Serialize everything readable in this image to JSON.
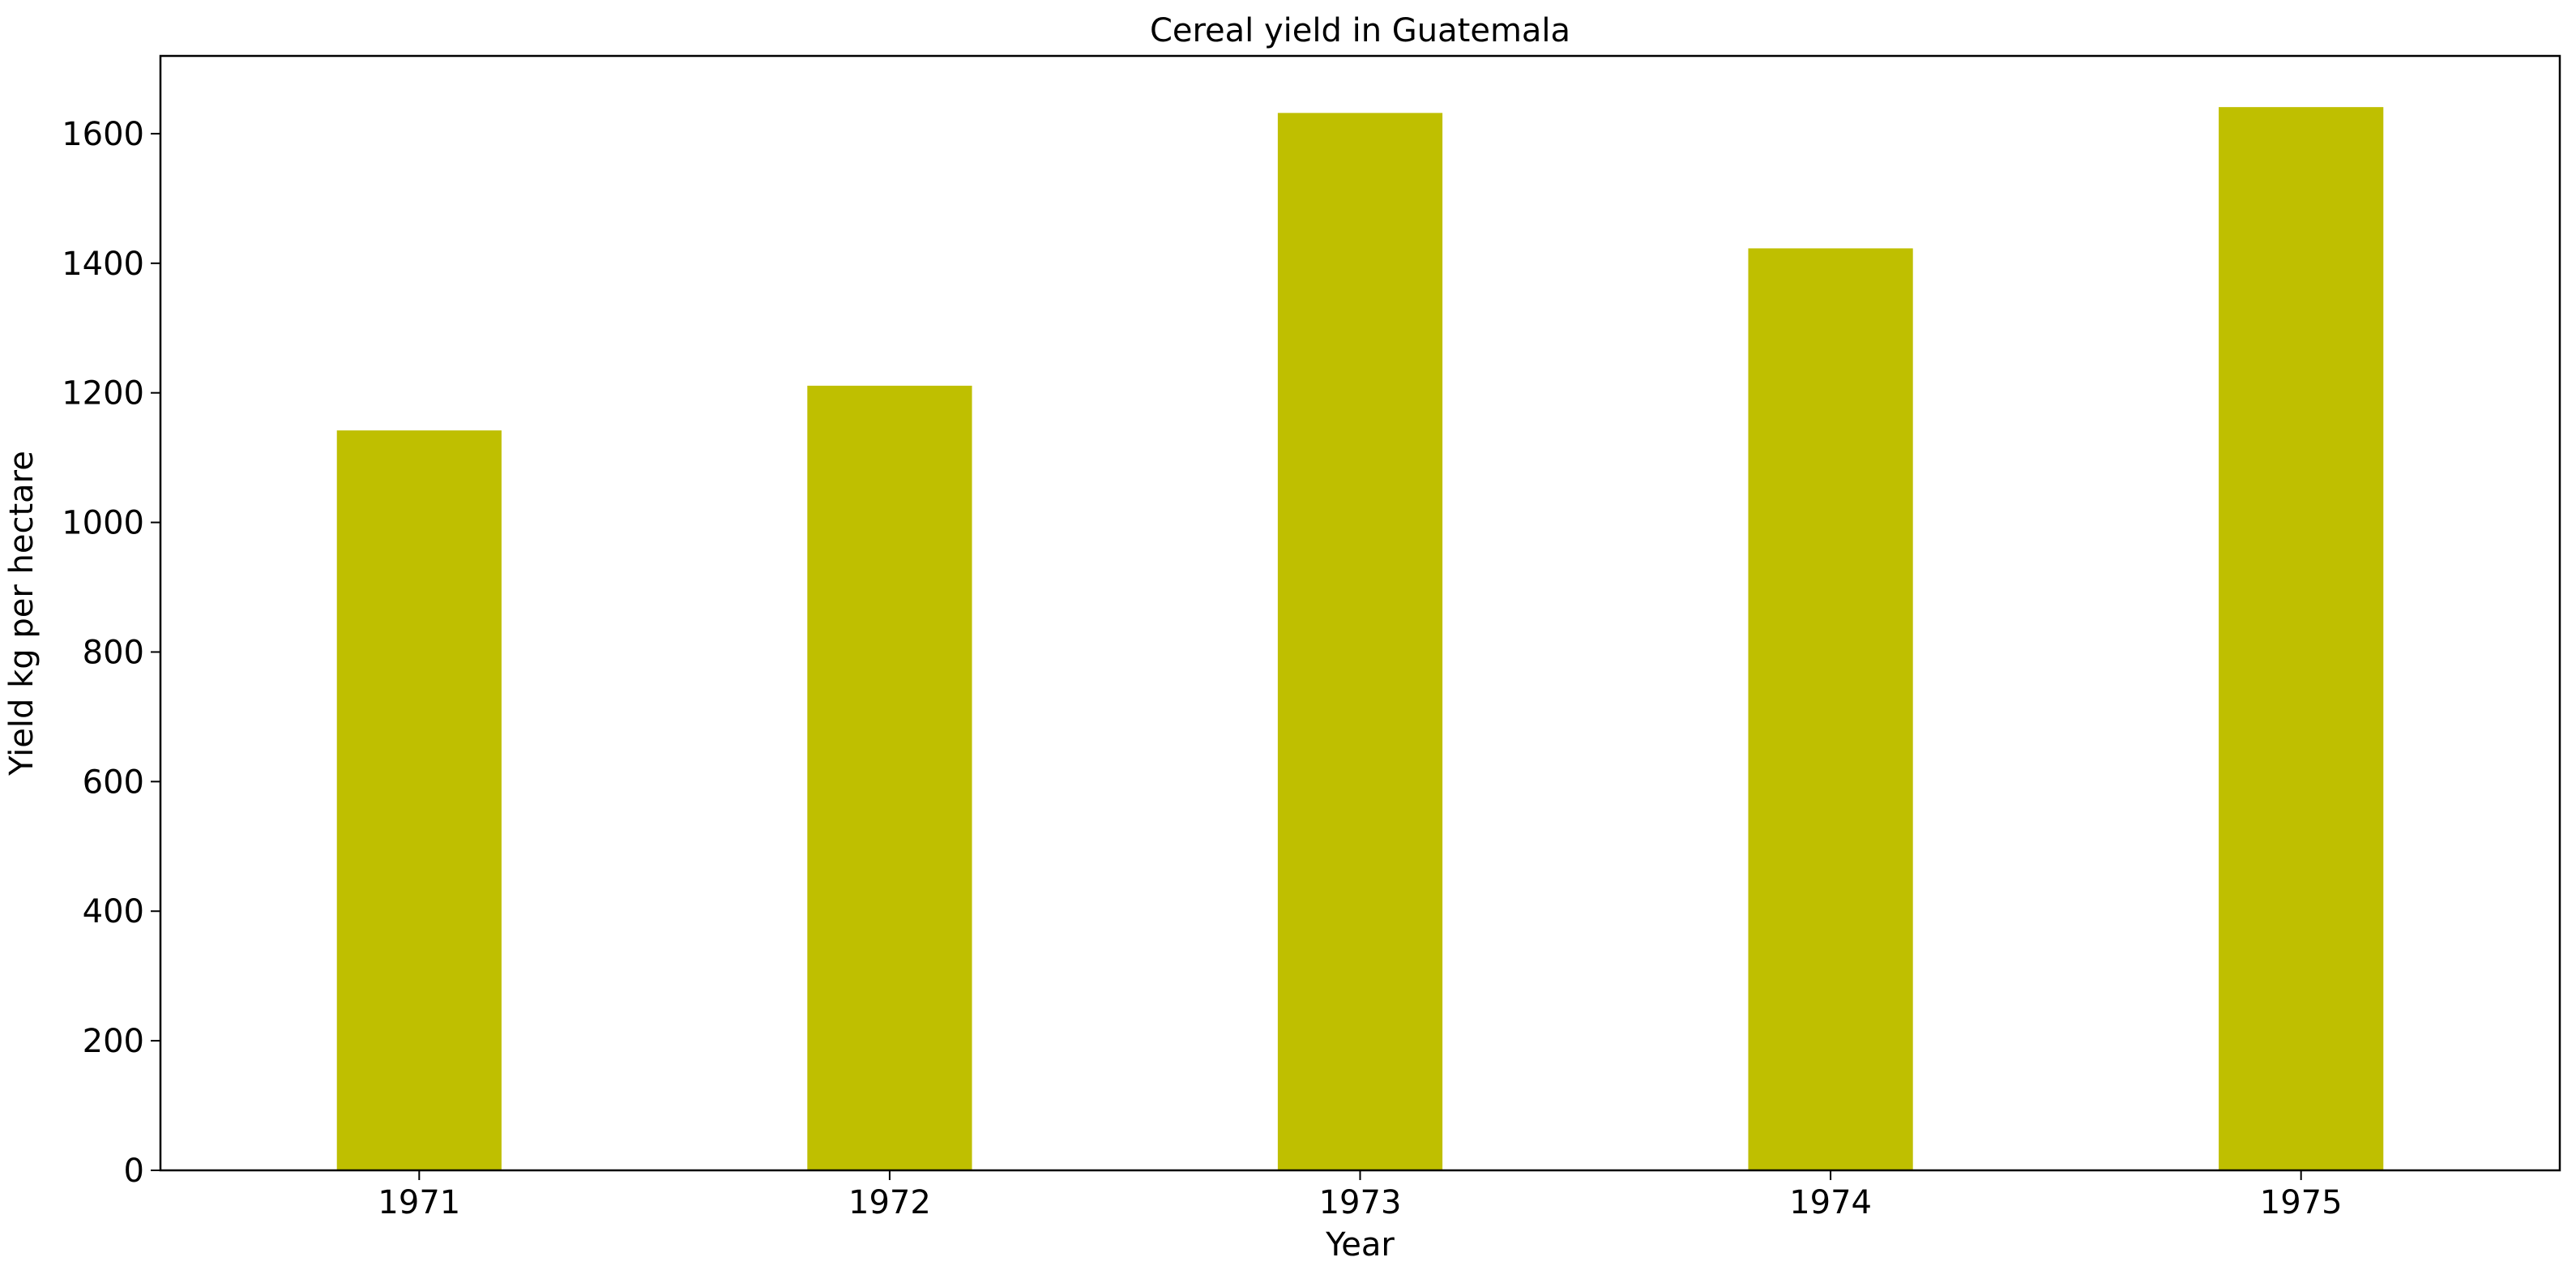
{
  "chart_data": {
    "type": "bar",
    "title": "Cereal yield in Guatemala",
    "xlabel": "Year",
    "ylabel": "Yield kg per hectare",
    "categories": [
      "1971",
      "1972",
      "1973",
      "1974",
      "1975"
    ],
    "values": [
      1142,
      1211,
      1632,
      1423,
      1641
    ],
    "ylim": [
      0,
      1720
    ],
    "yticks": [
      0,
      200,
      400,
      600,
      800,
      1000,
      1200,
      1400,
      1600
    ],
    "bar_color": "#bfbf00",
    "grid": false,
    "legend": "none"
  }
}
